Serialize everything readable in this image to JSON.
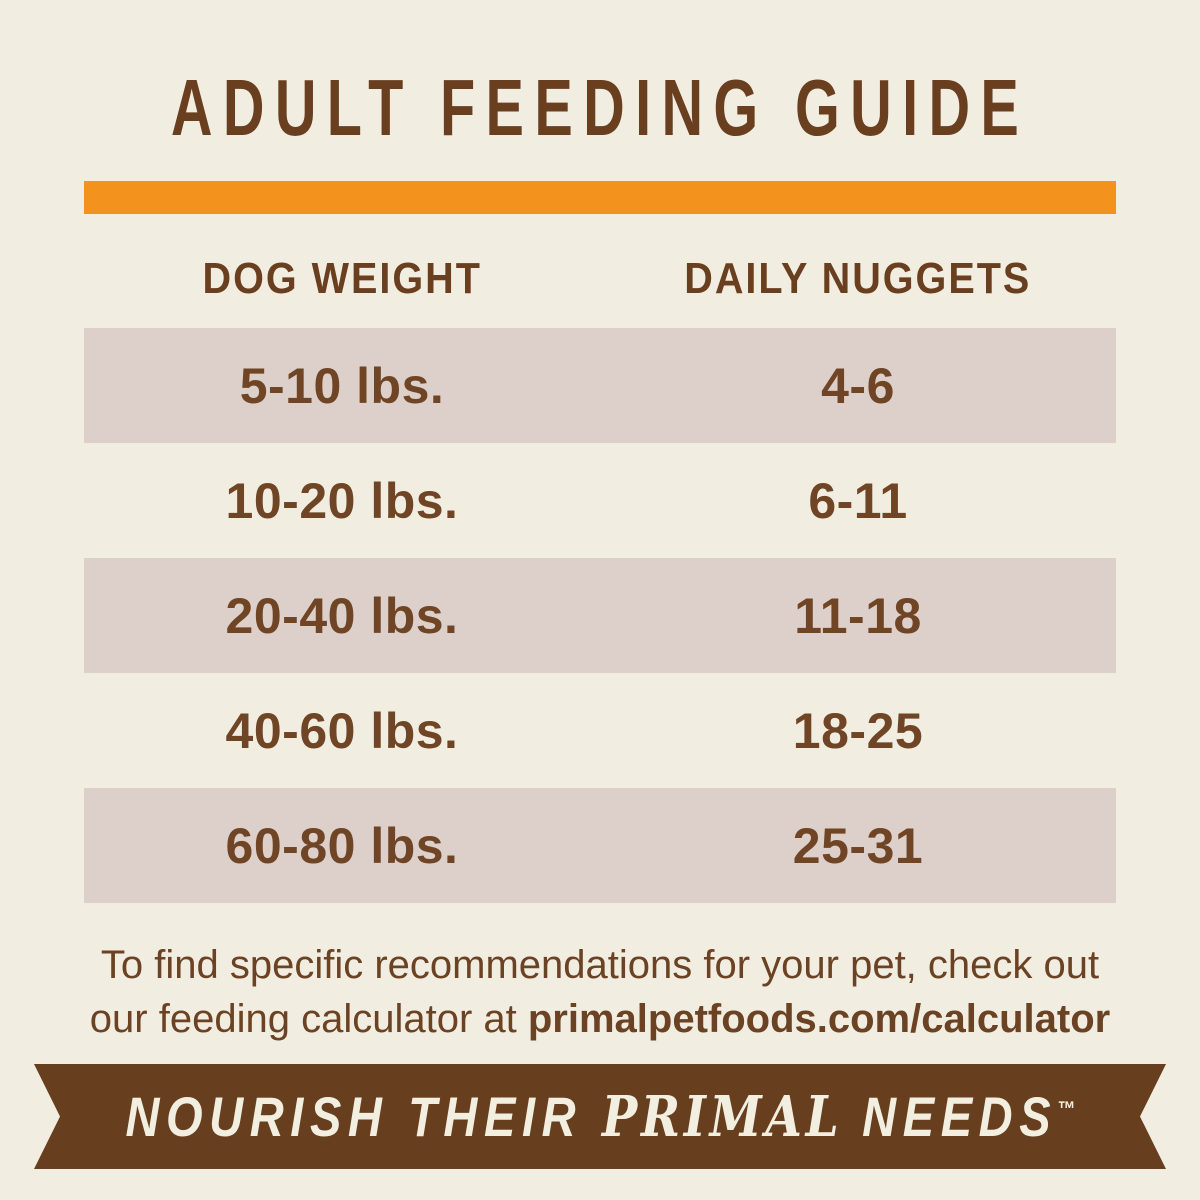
{
  "title": "ADULT FEEDING GUIDE",
  "colors": {
    "background": "#F1EEE1",
    "accent_bar": "#F3931E",
    "row_shade": "#DDD0CA",
    "text_brown": "#6A3F20",
    "ribbon_brown": "#673F1E",
    "ribbon_text_cream": "#F2EFE1"
  },
  "table": {
    "columns": [
      "DOG WEIGHT",
      "DAILY NUGGETS"
    ],
    "rows": [
      {
        "weight": "5-10 lbs.",
        "nuggets": "4-6"
      },
      {
        "weight": "10-20 lbs.",
        "nuggets": "6-11"
      },
      {
        "weight": "20-40 lbs.",
        "nuggets": "11-18"
      },
      {
        "weight": "40-60 lbs.",
        "nuggets": "18-25"
      },
      {
        "weight": "60-80 lbs.",
        "nuggets": "25-31"
      }
    ]
  },
  "footer": {
    "line1": "To find specific recommendations for your pet, check out",
    "line2_prefix": "our feeding calculator at ",
    "line2_url": "primalpetfoods.com/calculator"
  },
  "banner": {
    "prefix": "NOURISH THEIR ",
    "brand": "PRIMAL",
    "suffix": " NEEDS",
    "trademark": "™"
  }
}
